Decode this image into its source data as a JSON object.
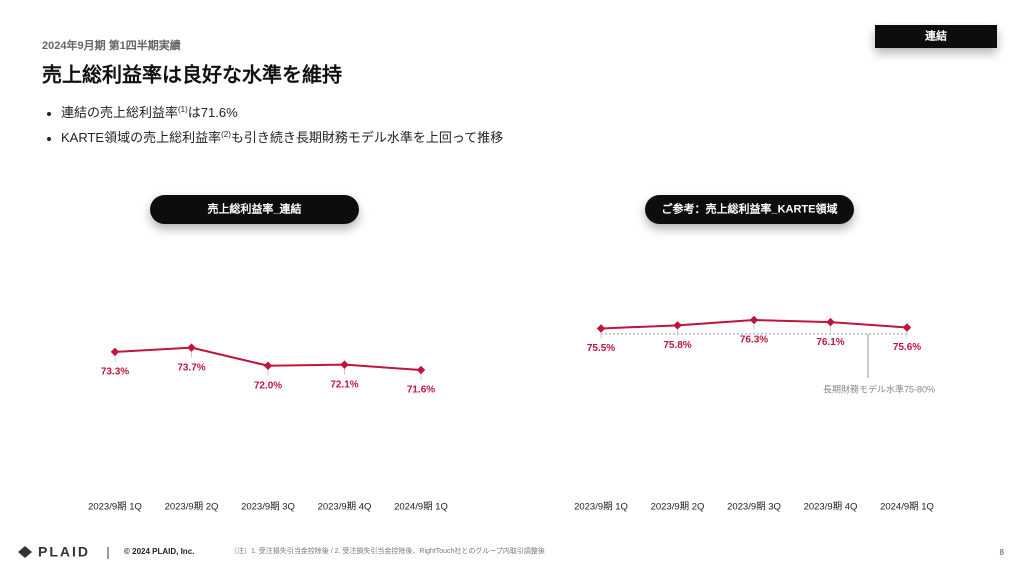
{
  "header": {
    "subtitle": "2024年9月期 第1四半期実績",
    "title": "売上総利益率は良好な水準を維持",
    "badge": "連結"
  },
  "bullets": [
    {
      "text": "連結の売上総利益率",
      "note": "(1)",
      "after": "は71.6%"
    },
    {
      "text": "KARTE領域の売上総利益率",
      "note": "(2)",
      "after": "も引き続き長期財務モデル水準を上回って推移"
    }
  ],
  "chart_data": [
    {
      "type": "line",
      "title": "売上総利益率_連結",
      "categories": [
        "2023/9期 1Q",
        "2023/9期 2Q",
        "2023/9期 3Q",
        "2023/9期 4Q",
        "2024/9期 1Q"
      ],
      "values": [
        73.3,
        73.7,
        72.0,
        72.1,
        71.6
      ],
      "value_labels": [
        "73.3%",
        "73.7%",
        "72.0%",
        "72.1%",
        "71.6%"
      ],
      "color": "#c0143c"
    },
    {
      "type": "line",
      "title": "ご参考：売上総利益率_KARTE領域",
      "categories": [
        "2023/9期 1Q",
        "2023/9期 2Q",
        "2023/9期 3Q",
        "2023/9期 4Q",
        "2024/9期 1Q"
      ],
      "values": [
        75.5,
        75.8,
        76.3,
        76.1,
        75.6
      ],
      "value_labels": [
        "75.5%",
        "75.8%",
        "76.3%",
        "76.1%",
        "75.6%"
      ],
      "color": "#c0143c",
      "reference": {
        "value": 75,
        "label": "長期財務モデル水準75-80%"
      }
    }
  ],
  "footer": {
    "logo": "PLAID",
    "copyright": "© 2024 PLAID, Inc.",
    "notes": "（注）1. 受注損失引当金控除後 / 2. 受注損失引当金控除後、RightTouch社とのグループ内取引調整後",
    "page": "8"
  }
}
